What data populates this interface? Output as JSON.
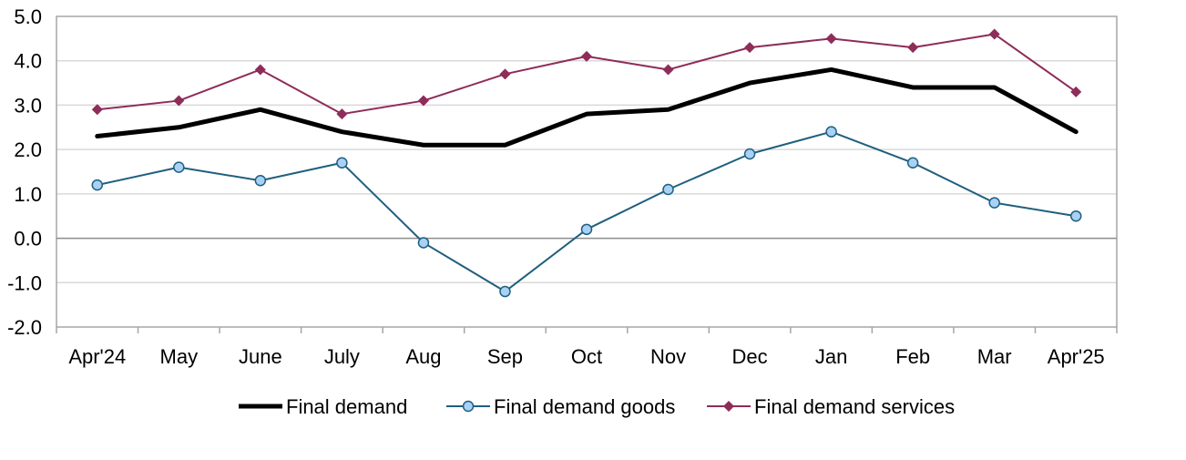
{
  "chart_data": {
    "type": "line",
    "title": "",
    "xlabel": "",
    "ylabel": "",
    "categories": [
      "Apr'24",
      "May",
      "June",
      "July",
      "Aug",
      "Sep",
      "Oct",
      "Nov",
      "Dec",
      "Jan",
      "Feb",
      "Mar",
      "Apr'25"
    ],
    "ylim": [
      -2.0,
      5.0
    ],
    "yticks": [
      "5.0",
      "4.0",
      "3.0",
      "2.0",
      "1.0",
      "0.0",
      "-1.0",
      "-2.0"
    ],
    "grid": true,
    "legend_position": "bottom",
    "series": [
      {
        "name": "Final demand",
        "color": "#000000",
        "marker": "none",
        "values": [
          2.3,
          2.5,
          2.9,
          2.4,
          2.1,
          2.1,
          2.8,
          2.9,
          3.5,
          3.8,
          3.4,
          3.4,
          2.4
        ]
      },
      {
        "name": "Final demand goods",
        "color": "#1f5f7f",
        "marker": "circle",
        "marker_fill": "#a9d0f5",
        "values": [
          1.2,
          1.6,
          1.3,
          1.7,
          -0.1,
          -1.2,
          0.2,
          1.1,
          1.9,
          2.4,
          1.7,
          0.8,
          0.5
        ]
      },
      {
        "name": "Final demand services",
        "color": "#8e2c5a",
        "marker": "diamond",
        "values": [
          2.9,
          3.1,
          3.8,
          2.8,
          3.1,
          3.7,
          4.1,
          3.8,
          4.3,
          4.5,
          4.3,
          4.6,
          3.3
        ]
      }
    ]
  }
}
